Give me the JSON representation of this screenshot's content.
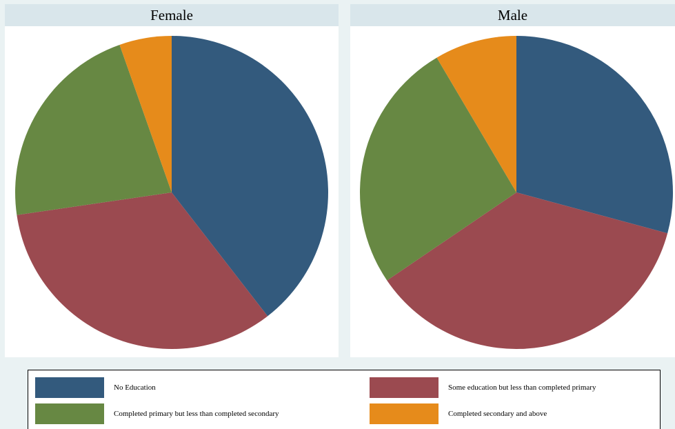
{
  "colors": {
    "no_education": "#335a7d",
    "some_education": "#9b4a50",
    "completed_primary": "#678843",
    "completed_secondary": "#e68b1b"
  },
  "chart_data": [
    {
      "type": "pie",
      "title": "Female",
      "categories": [
        "No Education",
        "Some education but less than completed primary",
        "Completed primary but less than completed secondary",
        "Completed secondary and above"
      ],
      "values": [
        39.5,
        33.2,
        21.9,
        5.4
      ]
    },
    {
      "type": "pie",
      "title": "Male",
      "categories": [
        "No Education",
        "Some education but less than completed primary",
        "Completed primary but less than completed secondary",
        "Completed secondary and above"
      ],
      "values": [
        29.2,
        36.3,
        26.0,
        8.5
      ]
    }
  ],
  "legend": {
    "items": [
      {
        "label": "No Education",
        "color_key": "no_education"
      },
      {
        "label": "Some education but less than completed primary",
        "color_key": "some_education"
      },
      {
        "label": "Completed primary but less than completed secondary",
        "color_key": "completed_primary"
      },
      {
        "label": "Completed secondary and above",
        "color_key": "completed_secondary"
      }
    ]
  }
}
